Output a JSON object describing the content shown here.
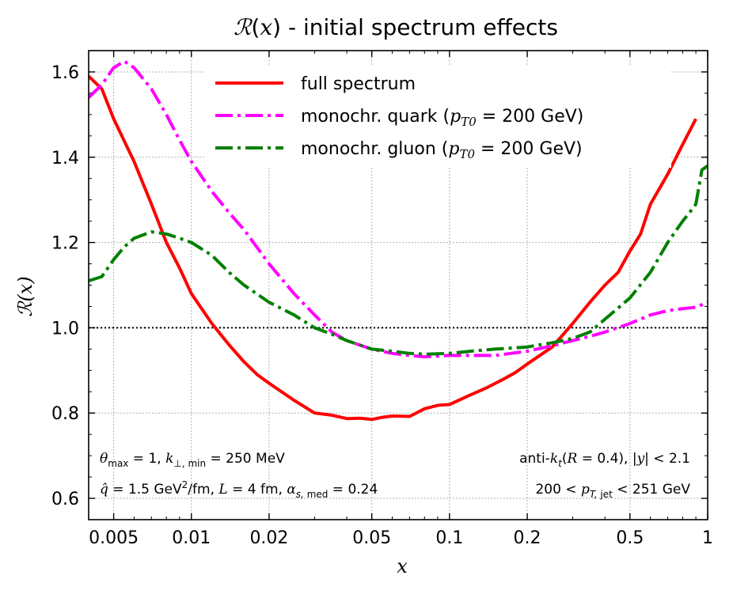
{
  "chart_data": {
    "type": "line",
    "title": "ℛ(x) - initial spectrum effects",
    "xlabel": "x",
    "ylabel": "ℛ(x)",
    "xscale": "log",
    "xlim": [
      0.004,
      1.0
    ],
    "ylim": [
      0.55,
      1.65
    ],
    "grid": true,
    "x_ticks": [
      {
        "value": 0.005,
        "label": "0.005"
      },
      {
        "value": 0.01,
        "label": "0.01"
      },
      {
        "value": 0.02,
        "label": "0.02"
      },
      {
        "value": 0.05,
        "label": "0.05"
      },
      {
        "value": 0.1,
        "label": "0.1"
      },
      {
        "value": 0.2,
        "label": "0.2"
      },
      {
        "value": 0.5,
        "label": "0.5"
      },
      {
        "value": 1,
        "label": "1"
      }
    ],
    "y_ticks": [
      {
        "value": 0.6,
        "label": "0.6"
      },
      {
        "value": 0.8,
        "label": "0.8"
      },
      {
        "value": 1.0,
        "label": "1.0"
      },
      {
        "value": 1.2,
        "label": "1.2"
      },
      {
        "value": 1.4,
        "label": "1.4"
      },
      {
        "value": 1.6,
        "label": "1.6"
      }
    ],
    "reference_line": {
      "y": 1.0,
      "style": "dotted",
      "color": "#000000"
    },
    "legend": {
      "placement": "top-center"
    },
    "series": [
      {
        "name": "full spectrum",
        "color": "#ff0000",
        "style": "solid",
        "x": [
          0.004,
          0.0045,
          0.005,
          0.006,
          0.007,
          0.008,
          0.009,
          0.01,
          0.012,
          0.014,
          0.016,
          0.018,
          0.02,
          0.025,
          0.03,
          0.035,
          0.04,
          0.045,
          0.05,
          0.055,
          0.06,
          0.07,
          0.08,
          0.09,
          0.1,
          0.12,
          0.14,
          0.16,
          0.18,
          0.2,
          0.25,
          0.3,
          0.35,
          0.4,
          0.45,
          0.5,
          0.55,
          0.6,
          0.7,
          0.8,
          0.9
        ],
        "values": [
          1.59,
          1.56,
          1.49,
          1.39,
          1.29,
          1.2,
          1.14,
          1.08,
          1.01,
          0.96,
          0.92,
          0.89,
          0.87,
          0.83,
          0.8,
          0.795,
          0.787,
          0.788,
          0.785,
          0.79,
          0.793,
          0.792,
          0.81,
          0.818,
          0.82,
          0.842,
          0.86,
          0.878,
          0.895,
          0.915,
          0.955,
          1.01,
          1.06,
          1.1,
          1.13,
          1.18,
          1.22,
          1.29,
          1.36,
          1.43,
          1.49
        ]
      },
      {
        "name": "monochr. quark (p_T0 = 200 GeV)",
        "color": "#ff00ff",
        "style": "dashdot",
        "x": [
          0.004,
          0.0045,
          0.005,
          0.0055,
          0.006,
          0.007,
          0.008,
          0.009,
          0.01,
          0.012,
          0.014,
          0.016,
          0.02,
          0.025,
          0.03,
          0.035,
          0.04,
          0.05,
          0.06,
          0.07,
          0.08,
          0.1,
          0.12,
          0.15,
          0.2,
          0.25,
          0.3,
          0.35,
          0.4,
          0.5,
          0.6,
          0.7,
          0.8,
          0.9,
          1.0
        ],
        "values": [
          1.54,
          1.57,
          1.61,
          1.625,
          1.61,
          1.56,
          1.5,
          1.44,
          1.39,
          1.32,
          1.27,
          1.23,
          1.15,
          1.08,
          1.03,
          0.99,
          0.97,
          0.95,
          0.94,
          0.935,
          0.932,
          0.935,
          0.935,
          0.935,
          0.945,
          0.958,
          0.97,
          0.98,
          0.99,
          1.01,
          1.03,
          1.04,
          1.045,
          1.048,
          1.06
        ]
      },
      {
        "name": "monochr. gluon (p_T0 = 200 GeV)",
        "color": "#008000",
        "style": "dashdot",
        "x": [
          0.004,
          0.0045,
          0.005,
          0.0055,
          0.006,
          0.007,
          0.008,
          0.009,
          0.01,
          0.012,
          0.014,
          0.016,
          0.02,
          0.025,
          0.03,
          0.035,
          0.04,
          0.05,
          0.06,
          0.07,
          0.08,
          0.1,
          0.12,
          0.15,
          0.2,
          0.25,
          0.3,
          0.35,
          0.4,
          0.5,
          0.6,
          0.7,
          0.8,
          0.85,
          0.9,
          0.95,
          1.0
        ],
        "values": [
          1.11,
          1.12,
          1.16,
          1.19,
          1.21,
          1.225,
          1.22,
          1.21,
          1.2,
          1.17,
          1.13,
          1.1,
          1.06,
          1.03,
          1.0,
          0.985,
          0.97,
          0.95,
          0.945,
          0.94,
          0.938,
          0.94,
          0.945,
          0.95,
          0.955,
          0.965,
          0.975,
          0.99,
          1.02,
          1.07,
          1.13,
          1.2,
          1.25,
          1.27,
          1.29,
          1.37,
          1.38
        ]
      }
    ],
    "annotations": {
      "top_left": "θ_max = 1,  k_⊥,min = 250 MeV",
      "bottom_left": "q̂ = 1.5 GeV²/fm,  L = 4 fm,  α_s,med = 0.24",
      "top_right": "anti-k_t(R = 0.4),  |y| < 2.1",
      "bottom_right": "200 < p_T,jet < 251 GeV"
    }
  }
}
